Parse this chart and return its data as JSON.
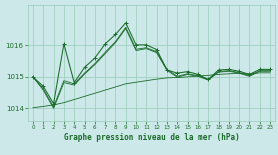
{
  "title": "Graphe pression niveau de la mer (hPa)",
  "background_color": "#cce8e8",
  "grid_color": "#99ccbb",
  "line_color": "#1a6b2a",
  "xlim": [
    -0.5,
    23.5
  ],
  "ylim": [
    1013.6,
    1017.3
  ],
  "yticks": [
    1014,
    1015,
    1016
  ],
  "xticks": [
    0,
    1,
    2,
    3,
    4,
    5,
    6,
    7,
    8,
    9,
    10,
    11,
    12,
    13,
    14,
    15,
    16,
    17,
    18,
    19,
    20,
    21,
    22,
    23
  ],
  "y_main": [
    1015.0,
    1014.7,
    1014.15,
    1016.05,
    1014.82,
    1015.3,
    1015.6,
    1016.05,
    1016.35,
    1016.72,
    1016.02,
    1016.02,
    1015.87,
    1015.22,
    1015.12,
    1015.17,
    1015.08,
    1014.92,
    1015.22,
    1015.24,
    1015.18,
    1015.08,
    1015.24,
    1015.24
  ],
  "y_smooth1": [
    1015.0,
    1014.62,
    1014.05,
    1014.88,
    1014.78,
    1015.12,
    1015.42,
    1015.78,
    1016.12,
    1016.58,
    1015.88,
    1015.93,
    1015.8,
    1015.24,
    1015.02,
    1015.1,
    1015.04,
    1014.92,
    1015.17,
    1015.2,
    1015.14,
    1015.04,
    1015.2,
    1015.2
  ],
  "y_smooth2": [
    1015.0,
    1014.58,
    1014.0,
    1014.82,
    1014.74,
    1015.09,
    1015.39,
    1015.74,
    1016.09,
    1016.54,
    1015.84,
    1015.9,
    1015.77,
    1015.21,
    1014.99,
    1015.08,
    1015.02,
    1014.9,
    1015.15,
    1015.18,
    1015.12,
    1015.02,
    1015.18,
    1015.18
  ],
  "y_flat": [
    1014.02,
    1014.06,
    1014.11,
    1014.18,
    1014.28,
    1014.38,
    1014.48,
    1014.58,
    1014.68,
    1014.78,
    1014.83,
    1014.88,
    1014.93,
    1014.97,
    1014.98,
    1015.0,
    1015.03,
    1015.05,
    1015.08,
    1015.1,
    1015.11,
    1015.09,
    1015.13,
    1015.13
  ]
}
